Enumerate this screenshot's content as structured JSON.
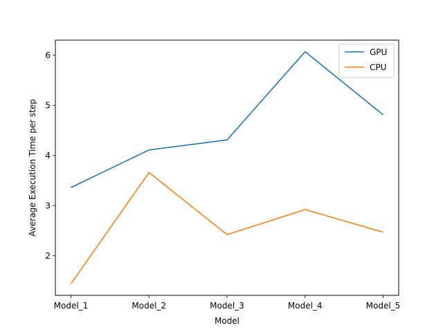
{
  "chart_data": {
    "type": "line",
    "title": "",
    "xlabel": "Model",
    "ylabel": "Average Execution Time per step",
    "categories": [
      "Model_1",
      "Model_2",
      "Model_3",
      "Model_4",
      "Model_5"
    ],
    "series": [
      {
        "name": "GPU",
        "color": "#1f77b4",
        "values": [
          3.36,
          4.11,
          4.31,
          6.07,
          4.81
        ]
      },
      {
        "name": "CPU",
        "color": "#ff7f0e",
        "values": [
          1.44,
          3.66,
          2.42,
          2.92,
          2.47
        ]
      }
    ],
    "ylim": [
      1.21,
      6.3
    ],
    "yticks": [
      2,
      3,
      4,
      5,
      6
    ],
    "grid": false,
    "legend_position": "top-right"
  }
}
